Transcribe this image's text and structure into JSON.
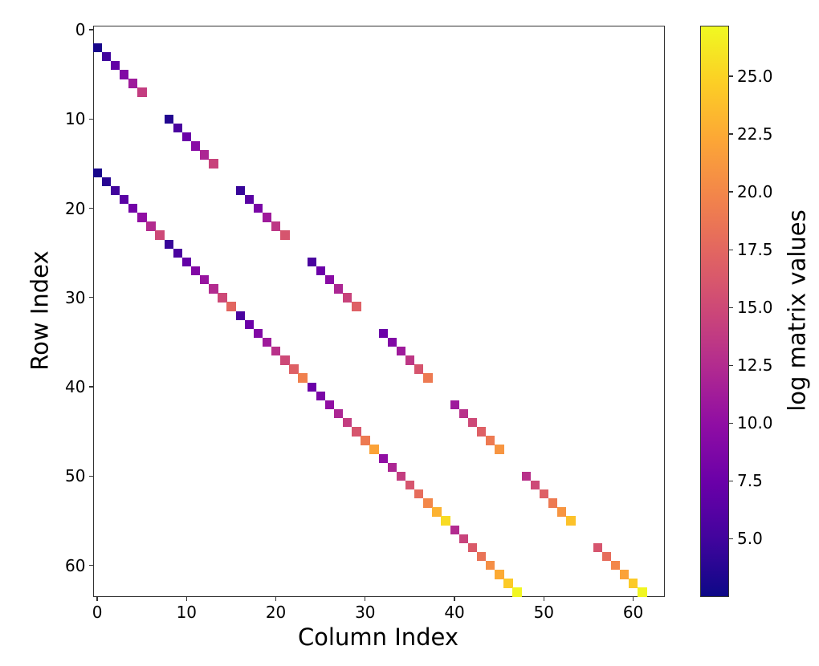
{
  "chart_data": {
    "type": "heatmap",
    "title": "",
    "xlabel": "Column Index",
    "ylabel": "Row Index",
    "colorbar_label": "log matrix values",
    "colormap": "plasma",
    "shape": [
      64,
      64
    ],
    "xlim": [
      -0.5,
      63.5
    ],
    "ylim": [
      63.5,
      -0.5
    ],
    "vmin": 2.5,
    "vmax": 27.2,
    "xticks": [
      0,
      10,
      20,
      30,
      40,
      50,
      60
    ],
    "yticks": [
      0,
      10,
      20,
      30,
      40,
      50,
      60
    ],
    "colorbar_ticks": [
      "5.0",
      "7.5",
      "10.0",
      "12.5",
      "15.0",
      "17.5",
      "20.0",
      "22.5",
      "25.0"
    ],
    "colorbar_tick_values": [
      5.0,
      7.5,
      10.0,
      12.5,
      15.0,
      17.5,
      20.0,
      22.5,
      25.0
    ],
    "grid": false,
    "background": "#ffffff",
    "nonzero_blocks": [
      {
        "start_row": 2,
        "start_col": 0,
        "values": [
          3.0,
          5.0,
          7.0,
          9.0,
          11.0,
          14.0
        ]
      },
      {
        "start_row": 10,
        "start_col": 8,
        "values": [
          3.5,
          5.5,
          7.5,
          9.5,
          12.0,
          14.5
        ]
      },
      {
        "start_row": 18,
        "start_col": 16,
        "values": [
          4.5,
          6.5,
          8.5,
          11.0,
          13.5,
          16.0
        ]
      },
      {
        "start_row": 26,
        "start_col": 24,
        "values": [
          5.5,
          7.5,
          9.5,
          12.0,
          14.5,
          17.0
        ]
      },
      {
        "start_row": 34,
        "start_col": 32,
        "values": [
          7.5,
          9.0,
          11.0,
          13.5,
          16.0,
          19.0
        ]
      },
      {
        "start_row": 42,
        "start_col": 40,
        "values": [
          11.0,
          13.0,
          15.0,
          17.0,
          19.0,
          21.0
        ]
      },
      {
        "start_row": 50,
        "start_col": 48,
        "values": [
          13.0,
          15.0,
          17.0,
          19.0,
          21.0,
          24.0
        ]
      },
      {
        "start_row": 58,
        "start_col": 56,
        "values": [
          16.0,
          18.0,
          20.0,
          22.0,
          24.5,
          27.0
        ]
      },
      {
        "start_row": 16,
        "start_col": 0,
        "values": [
          3.0,
          3.8,
          5.0,
          6.5,
          8.0,
          10.0,
          12.5,
          15.0
        ]
      },
      {
        "start_row": 24,
        "start_col": 8,
        "values": [
          4.5,
          5.5,
          7.0,
          9.0,
          10.5,
          12.5,
          15.0,
          17.5
        ]
      },
      {
        "start_row": 32,
        "start_col": 16,
        "values": [
          5.5,
          7.5,
          9.0,
          11.0,
          13.0,
          15.0,
          17.0,
          19.5
        ]
      },
      {
        "start_row": 40,
        "start_col": 24,
        "values": [
          7.5,
          8.5,
          10.0,
          12.0,
          14.0,
          16.0,
          19.0,
          22.0
        ]
      },
      {
        "start_row": 48,
        "start_col": 32,
        "values": [
          10.0,
          12.0,
          14.0,
          16.0,
          18.0,
          20.0,
          23.0,
          25.5
        ]
      },
      {
        "start_row": 56,
        "start_col": 40,
        "values": [
          12.5,
          14.5,
          16.5,
          18.5,
          20.5,
          22.5,
          24.5,
          27.0
        ]
      }
    ],
    "note": "Each block is a diagonal run: entry k sits at (start_row+k, start_col+k). All other entries are empty (white)."
  },
  "axes": {
    "xlabel": "Column Index",
    "ylabel": "Row Index",
    "colorbar_label": "log matrix values"
  }
}
